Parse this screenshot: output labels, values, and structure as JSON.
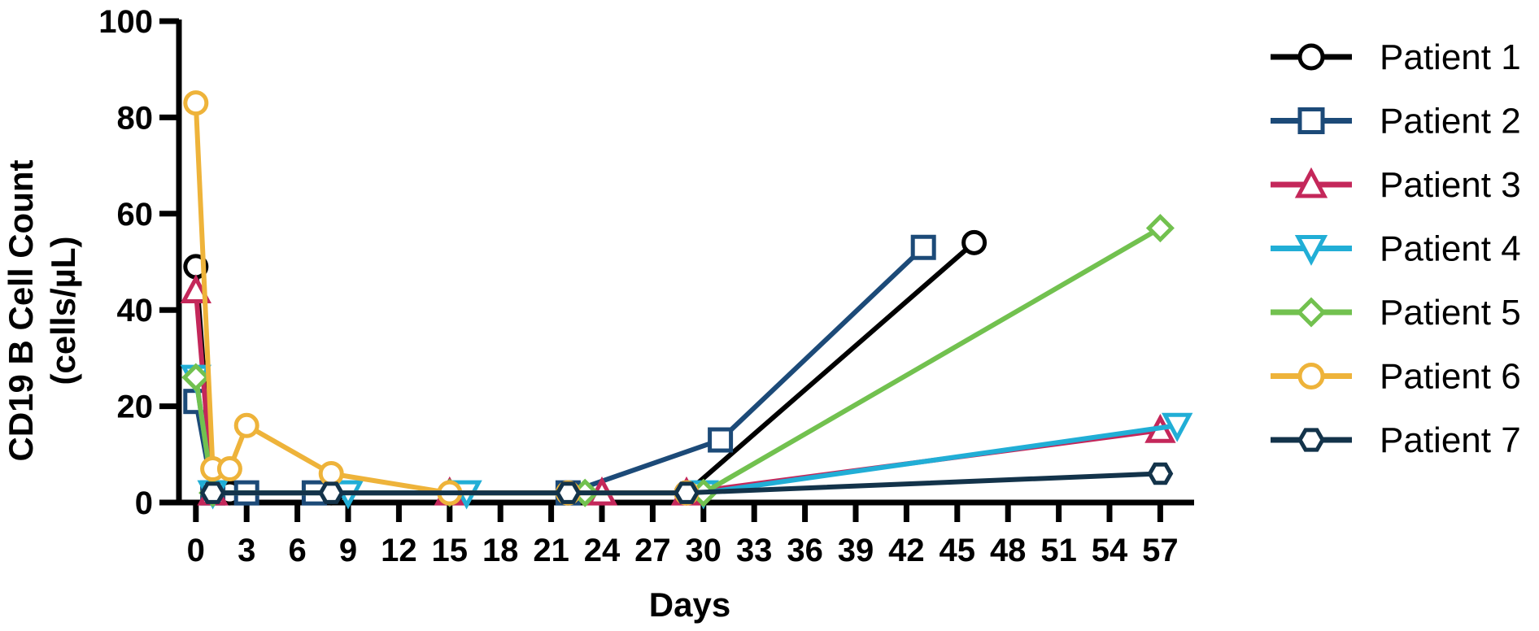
{
  "chart_data": {
    "type": "line",
    "xlabel": "Days",
    "ylabel_line1": "CD19 B Cell Count",
    "ylabel_line2": "(cells/µL)",
    "xlim": [
      -1,
      59
    ],
    "ylim": [
      0,
      100
    ],
    "x_ticks": [
      0,
      3,
      6,
      9,
      12,
      15,
      18,
      21,
      24,
      27,
      30,
      33,
      36,
      39,
      42,
      45,
      48,
      51,
      54,
      57
    ],
    "y_ticks": [
      0,
      20,
      40,
      60,
      80,
      100
    ],
    "legend_position": "right",
    "series": [
      {
        "name": "Patient 1",
        "color": "#000000",
        "marker": "circle",
        "points": [
          [
            0,
            49
          ],
          [
            1,
            2
          ],
          [
            2,
            2
          ],
          [
            8,
            2
          ],
          [
            22,
            2
          ],
          [
            29,
            2
          ],
          [
            46,
            54
          ]
        ]
      },
      {
        "name": "Patient 2",
        "color": "#1c4a78",
        "marker": "square",
        "points": [
          [
            0,
            21
          ],
          [
            1,
            2
          ],
          [
            3,
            2
          ],
          [
            7,
            2
          ],
          [
            22,
            2
          ],
          [
            31,
            13
          ],
          [
            43,
            53
          ]
        ]
      },
      {
        "name": "Patient 3",
        "color": "#c4275a",
        "marker": "triangle-up",
        "points": [
          [
            0,
            44
          ],
          [
            1,
            2
          ],
          [
            15,
            2
          ],
          [
            24,
            2
          ],
          [
            29,
            2
          ],
          [
            57,
            15
          ]
        ]
      },
      {
        "name": "Patient 4",
        "color": "#21aed6",
        "marker": "triangle-down",
        "points": [
          [
            0,
            26
          ],
          [
            1,
            2
          ],
          [
            9,
            2
          ],
          [
            16,
            2
          ],
          [
            30,
            2
          ],
          [
            58,
            16
          ]
        ]
      },
      {
        "name": "Patient 5",
        "color": "#72c14f",
        "marker": "diamond",
        "points": [
          [
            0,
            26
          ],
          [
            1,
            2
          ],
          [
            15,
            2
          ],
          [
            23,
            2
          ],
          [
            30,
            2
          ],
          [
            57,
            57
          ]
        ]
      },
      {
        "name": "Patient 6",
        "color": "#eeb33a",
        "marker": "circle",
        "points": [
          [
            0,
            83
          ],
          [
            1,
            7
          ],
          [
            2,
            7
          ],
          [
            3,
            16
          ],
          [
            8,
            6
          ],
          [
            15,
            2
          ],
          [
            22,
            2
          ],
          [
            29,
            2
          ]
        ]
      },
      {
        "name": "Patient 7",
        "color": "#13334a",
        "marker": "hexagon",
        "points": [
          [
            1,
            2
          ],
          [
            8,
            2
          ],
          [
            22,
            2
          ],
          [
            29,
            2
          ],
          [
            57,
            6
          ]
        ]
      }
    ]
  }
}
